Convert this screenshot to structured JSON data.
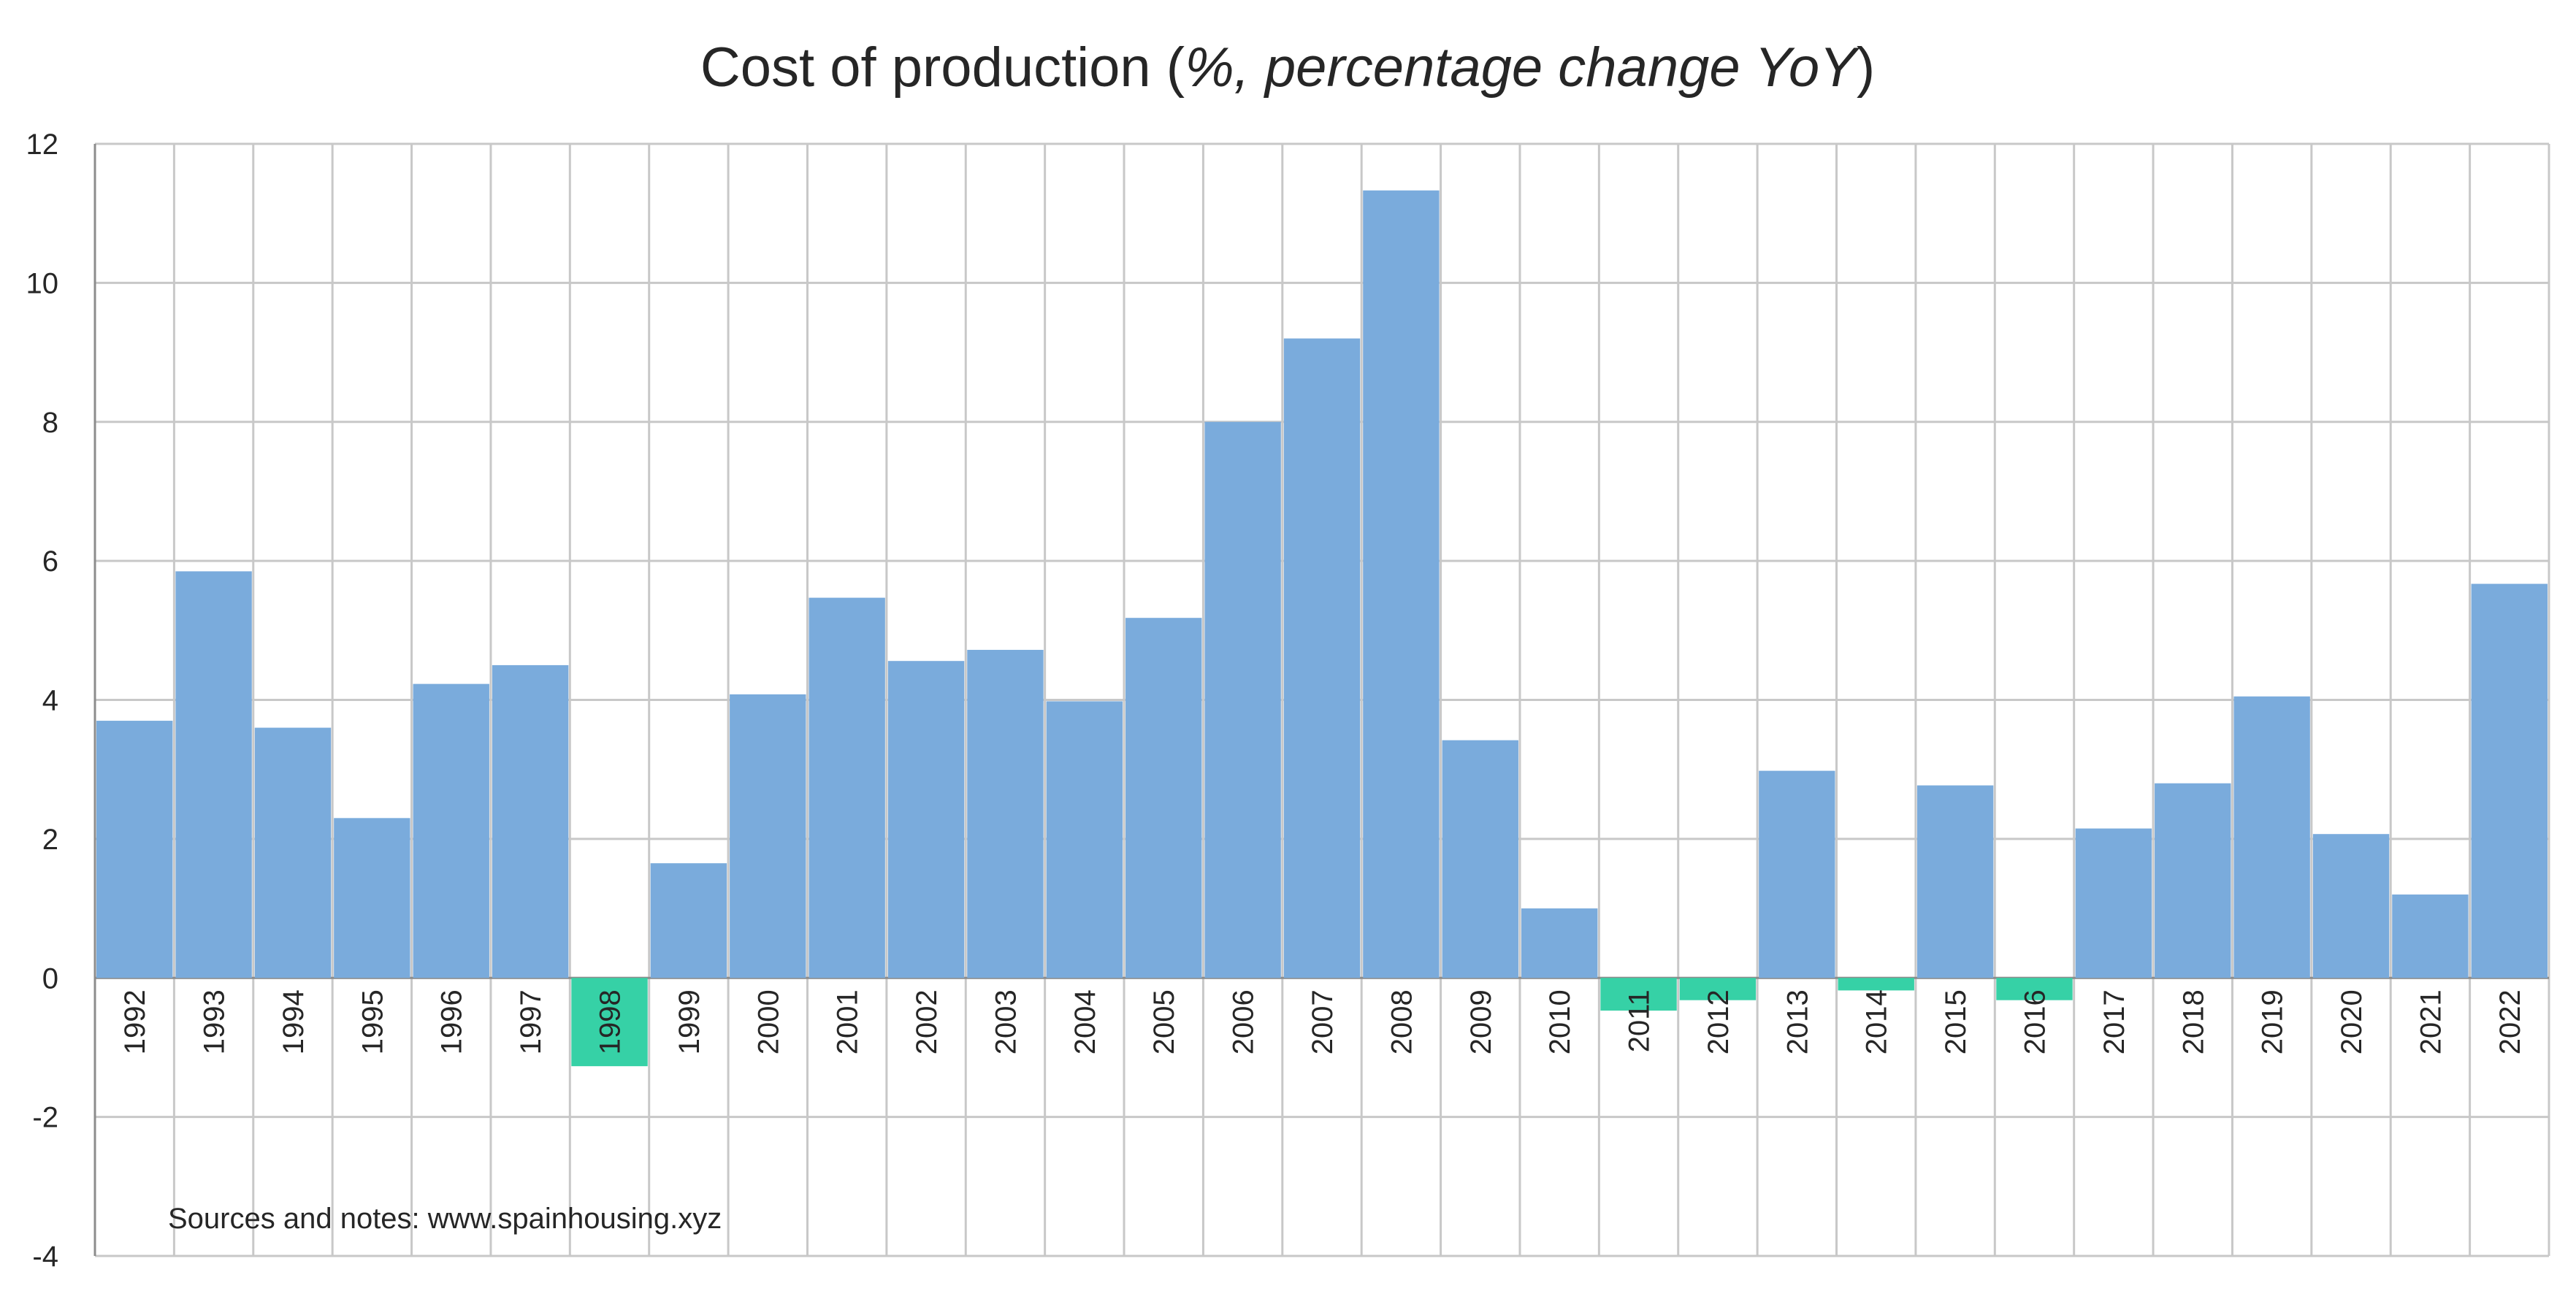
{
  "chart_data": {
    "type": "bar",
    "title": {
      "prefix": "Cost of production (",
      "emphasis": "%, percentage change YoY",
      "suffix": ")"
    },
    "xlabel": "",
    "ylabel": "",
    "ylim": [
      -4,
      12
    ],
    "yticks": [
      12,
      10,
      8,
      6,
      4,
      2,
      0,
      -2,
      -4
    ],
    "grid": true,
    "legend": "none",
    "categories": [
      "1992",
      "1993",
      "1994",
      "1995",
      "1996",
      "1997",
      "1998",
      "1999",
      "2000",
      "2001",
      "2002",
      "2003",
      "2004",
      "2005",
      "2006",
      "2007",
      "2008",
      "2009",
      "2010",
      "2011",
      "2012",
      "2013",
      "2014",
      "2015",
      "2016",
      "2017",
      "2018",
      "2019",
      "2020",
      "2021",
      "2022"
    ],
    "values": [
      3.7,
      5.85,
      3.6,
      2.3,
      4.23,
      4.5,
      -1.27,
      1.65,
      4.08,
      5.47,
      4.56,
      4.72,
      3.98,
      5.18,
      8.0,
      9.2,
      11.33,
      3.42,
      1.0,
      -0.47,
      -0.32,
      2.98,
      -0.18,
      2.77,
      -0.32,
      2.15,
      2.8,
      4.05,
      2.07,
      1.2,
      5.67
    ],
    "colors": {
      "positive": "#7aabdc",
      "negative": "#36d1a6",
      "grid": "#c8c8c8",
      "axis": "#8c8c8c"
    },
    "annotation": "Sources and notes: www.spainhousing.xyz"
  }
}
